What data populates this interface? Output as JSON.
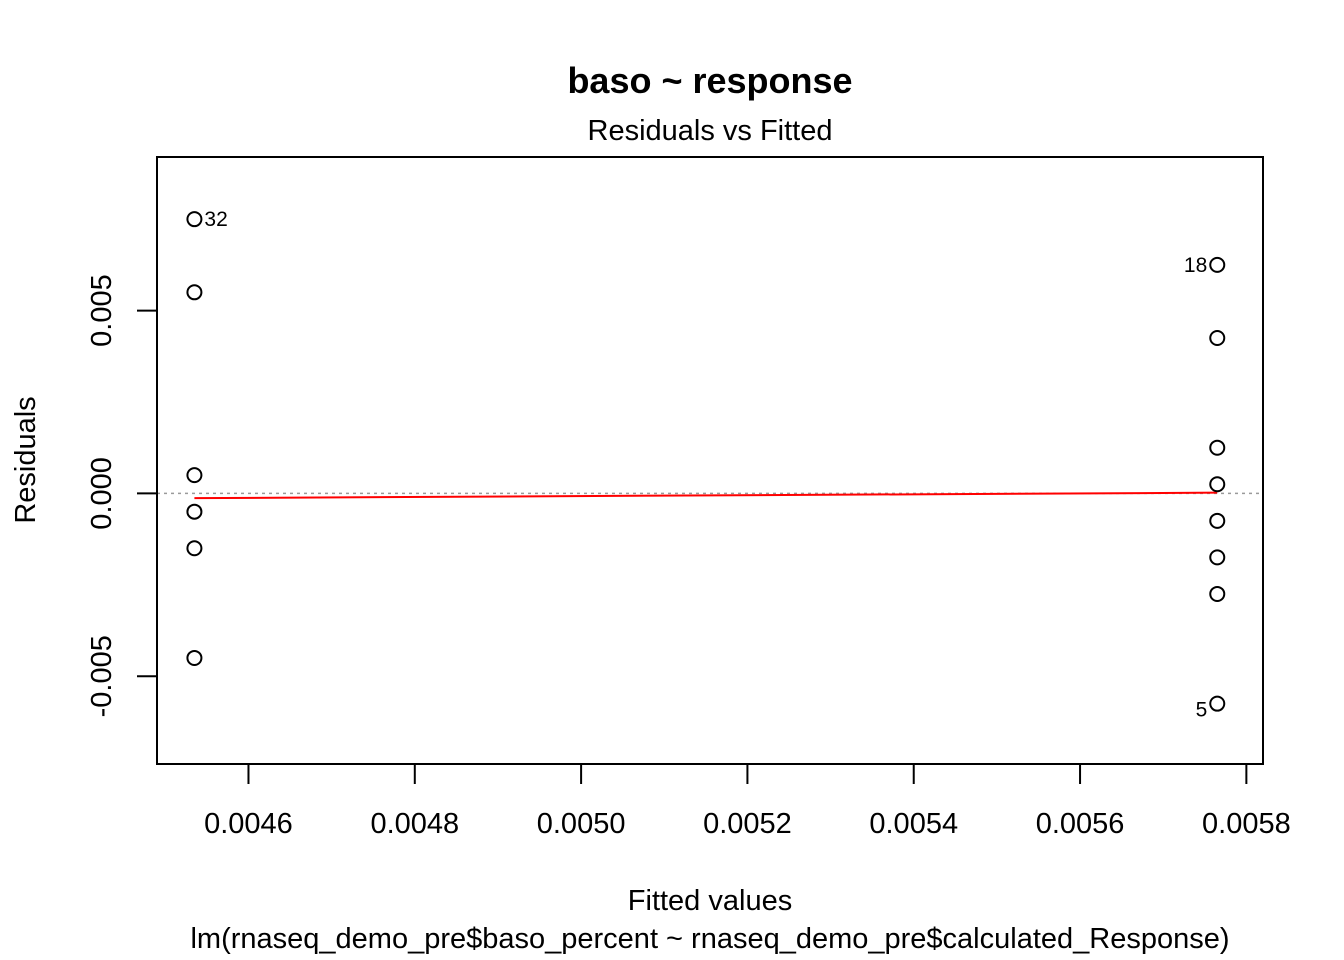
{
  "chart_data": {
    "type": "scatter",
    "title": "baso ~ response",
    "subtitle": "Residuals vs Fitted",
    "xlabel": "Fitted values",
    "xlabel2": "lm(rnaseq_demo_pre$baso_percent ~ rnaseq_demo_pre$calculated_Response)",
    "ylabel": "Residuals",
    "xlim": [
      0.00449,
      0.00582
    ],
    "ylim": [
      -0.0074,
      0.0092
    ],
    "x_ticks": [
      0.0046,
      0.0048,
      0.005,
      0.0052,
      0.0054,
      0.0056,
      0.0058
    ],
    "x_tick_labels": [
      "0.0046",
      "0.0048",
      "0.0050",
      "0.0052",
      "0.0054",
      "0.0056",
      "0.0058"
    ],
    "y_ticks": [
      -0.005,
      0.0,
      0.005
    ],
    "y_tick_labels": [
      "-0.005",
      "0.000",
      "0.005"
    ],
    "reference_line_y": 0,
    "points": [
      {
        "x": 0.004535,
        "y": 0.0075,
        "label": "32"
      },
      {
        "x": 0.004535,
        "y": 0.0055
      },
      {
        "x": 0.004535,
        "y": 0.0005
      },
      {
        "x": 0.004535,
        "y": -0.0005
      },
      {
        "x": 0.004535,
        "y": -0.0015
      },
      {
        "x": 0.004535,
        "y": -0.0045
      },
      {
        "x": 0.005765,
        "y": 0.00625,
        "label": "18"
      },
      {
        "x": 0.005765,
        "y": 0.00425
      },
      {
        "x": 0.005765,
        "y": 0.00125
      },
      {
        "x": 0.005765,
        "y": 0.00025
      },
      {
        "x": 0.005765,
        "y": -0.00075
      },
      {
        "x": 0.005765,
        "y": -0.00175
      },
      {
        "x": 0.005765,
        "y": -0.00275
      },
      {
        "x": 0.005765,
        "y": -0.00575,
        "label": "5"
      }
    ],
    "smooth_line": {
      "x": [
        0.004535,
        0.005765
      ],
      "y": [
        -0.00013,
        2e-05
      ]
    },
    "colors": {
      "smooth": "#ff0000",
      "reference": "#9a9a9a",
      "points": "#000000"
    }
  }
}
